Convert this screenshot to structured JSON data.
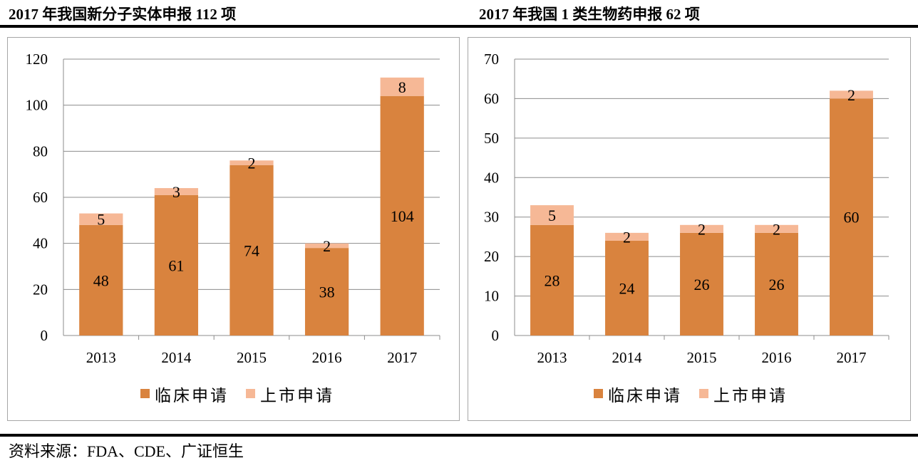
{
  "titles": {
    "left": "2017 年我国新分子实体申报 112 项",
    "right": "2017 年我国 1 类生物药申报 62 项"
  },
  "source": "资料来源：FDA、CDE、广证恒生",
  "colors": {
    "clinical": "#d9833e",
    "market": "#f6b896",
    "grid": "#8c8c8c",
    "axis": "#8c8c8c"
  },
  "chart_data": [
    {
      "type": "bar",
      "stacked": true,
      "title": "2017 年我国新分子实体申报 112 项",
      "categories": [
        "2013",
        "2014",
        "2015",
        "2016",
        "2017"
      ],
      "series": [
        {
          "name": "临床申请",
          "values": [
            48,
            61,
            74,
            38,
            104
          ]
        },
        {
          "name": "上市申请",
          "values": [
            5,
            3,
            2,
            2,
            8
          ]
        }
      ],
      "ylim": [
        0,
        120
      ],
      "yticks": [
        0,
        20,
        40,
        60,
        80,
        100,
        120
      ],
      "grid": true,
      "legend": "bottom"
    },
    {
      "type": "bar",
      "stacked": true,
      "title": "2017 年我国 1 类生物药申报 62 项",
      "categories": [
        "2013",
        "2014",
        "2015",
        "2016",
        "2017"
      ],
      "series": [
        {
          "name": "临床申请",
          "values": [
            28,
            24,
            26,
            26,
            60
          ]
        },
        {
          "name": "上市申请",
          "values": [
            5,
            2,
            2,
            2,
            2
          ]
        }
      ],
      "ylim": [
        0,
        70
      ],
      "yticks": [
        0,
        10,
        20,
        30,
        40,
        50,
        60,
        70
      ],
      "grid": true,
      "legend": "bottom"
    }
  ]
}
